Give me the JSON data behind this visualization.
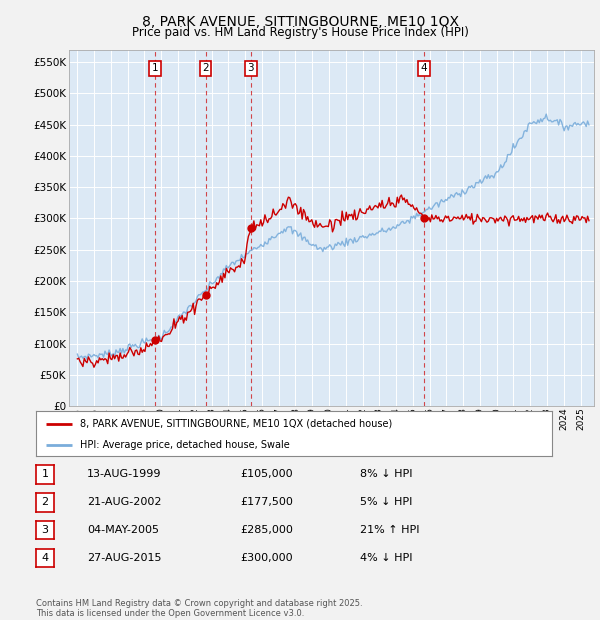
{
  "title": "8, PARK AVENUE, SITTINGBOURNE, ME10 1QX",
  "subtitle": "Price paid vs. HM Land Registry's House Price Index (HPI)",
  "ytick_values": [
    0,
    50000,
    100000,
    150000,
    200000,
    250000,
    300000,
    350000,
    400000,
    450000,
    500000,
    550000
  ],
  "ylim": [
    0,
    570000
  ],
  "xlim_start": 1994.5,
  "xlim_end": 2025.8,
  "background_color": "#dce9f5",
  "grid_color": "#ffffff",
  "red_color": "#cc0000",
  "blue_color": "#7aaddb",
  "fig_bg": "#f2f2f2",
  "transactions": [
    {
      "id": 1,
      "year": 1999.62,
      "price": 105000
    },
    {
      "id": 2,
      "year": 2002.64,
      "price": 177500
    },
    {
      "id": 3,
      "year": 2005.34,
      "price": 285000
    },
    {
      "id": 4,
      "year": 2015.65,
      "price": 300000
    }
  ],
  "legend_line1": "8, PARK AVENUE, SITTINGBOURNE, ME10 1QX (detached house)",
  "legend_line2": "HPI: Average price, detached house, Swale",
  "table_rows": [
    {
      "id": 1,
      "date": "13-AUG-1999",
      "price": "£105,000",
      "pct": "8% ↓ HPI"
    },
    {
      "id": 2,
      "date": "21-AUG-2002",
      "price": "£177,500",
      "pct": "5% ↓ HPI"
    },
    {
      "id": 3,
      "date": "04-MAY-2005",
      "price": "£285,000",
      "pct": "21% ↑ HPI"
    },
    {
      "id": 4,
      "date": "27-AUG-2015",
      "price": "£300,000",
      "pct": "4% ↓ HPI"
    }
  ],
  "footnote": "Contains HM Land Registry data © Crown copyright and database right 2025.\nThis data is licensed under the Open Government Licence v3.0."
}
